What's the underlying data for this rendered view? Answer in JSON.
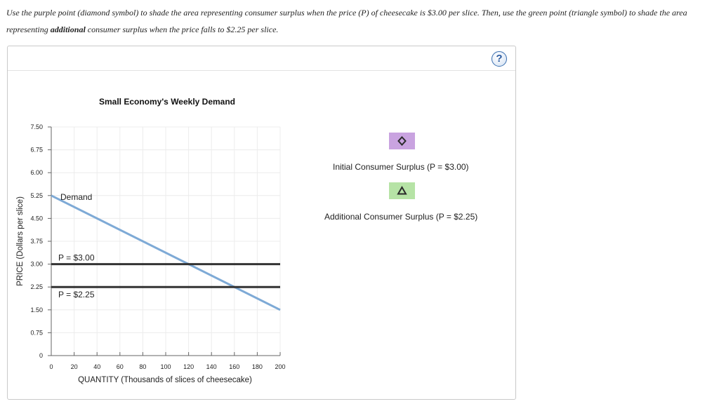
{
  "instructions": {
    "part1": "Use the purple point (diamond symbol) to shade the area representing consumer surplus when the price (P) of cheesecake is $3.00 per slice. Then, use the green point (triangle symbol) to shade the area representing ",
    "bold": "additional",
    "part2": " consumer surplus when the price falls to $2.25 per slice."
  },
  "help_label": "?",
  "palette": {
    "initial": {
      "label": "Initial Consumer Surplus (P = $3.00)",
      "color": "#c9a3e0",
      "symbol": "diamond-icon"
    },
    "additional": {
      "label": "Additional Consumer Surplus (P = $2.25)",
      "color": "#b6e3a6",
      "symbol": "triangle-icon"
    }
  },
  "chart_data": {
    "type": "line",
    "title": "Small Economy's Weekly Demand",
    "xlabel": "QUANTITY (Thousands of slices of cheesecake)",
    "ylabel": "PRICE (Dollars per slice)",
    "xlim": [
      0,
      200
    ],
    "ylim": [
      0,
      7.5
    ],
    "xticks": [
      0,
      20,
      40,
      60,
      80,
      100,
      120,
      140,
      160,
      180,
      200
    ],
    "xtick_labels": [
      "0",
      "20",
      "40",
      "60",
      "80",
      "100",
      "120",
      "140",
      "160",
      "180",
      "200"
    ],
    "yticks": [
      0,
      0.75,
      1.5,
      2.25,
      3.0,
      3.75,
      4.5,
      5.25,
      6.0,
      6.75,
      7.5
    ],
    "ytick_labels": [
      "0",
      "0.75",
      "1.50",
      "2.25",
      "3.00",
      "3.75",
      "4.50",
      "5.25",
      "6.00",
      "6.75",
      "7.50"
    ],
    "grid": true,
    "series": [
      {
        "name": "Demand",
        "x": [
          0,
          200
        ],
        "y": [
          5.25,
          1.5
        ],
        "color": "#7eaad6"
      }
    ],
    "hlines": [
      {
        "name": "P = $3.00",
        "y": 3.0,
        "color": "#333333"
      },
      {
        "name": "P = $2.25",
        "y": 2.25,
        "color": "#333333"
      }
    ]
  }
}
